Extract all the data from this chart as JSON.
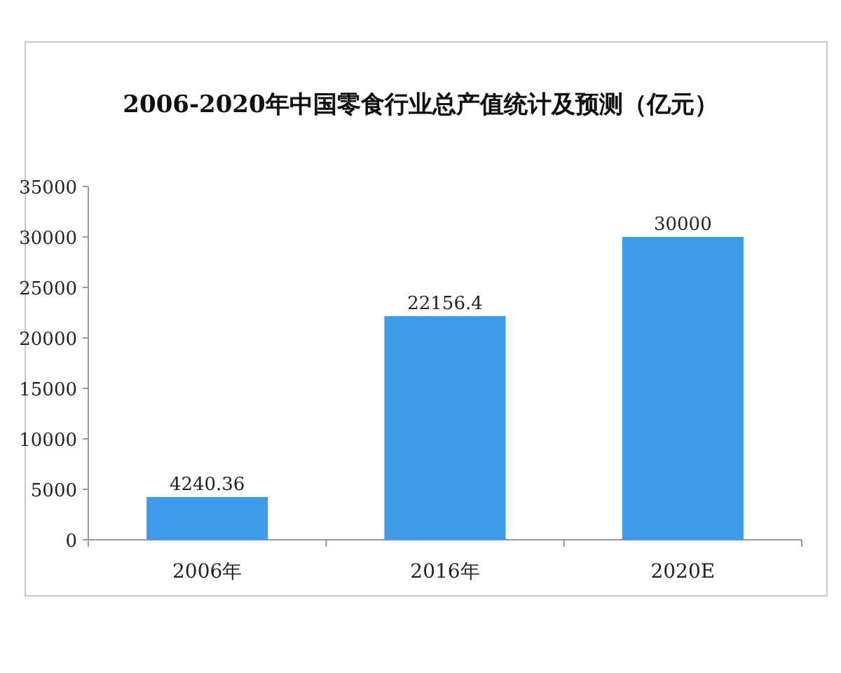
{
  "chart_data": {
    "type": "bar",
    "title": "2006-2020年中国零食行业总产值统计及预测（亿元）",
    "categories": [
      "2006年",
      "2016年",
      "2020E"
    ],
    "values": [
      4240.36,
      22156.4,
      30000
    ],
    "color": "#3d9be9",
    "ylim": [
      0,
      35000
    ],
    "yticks": [
      0,
      5000,
      10000,
      15000,
      20000,
      25000,
      30000,
      35000
    ],
    "data_labels": true,
    "grid": false
  }
}
